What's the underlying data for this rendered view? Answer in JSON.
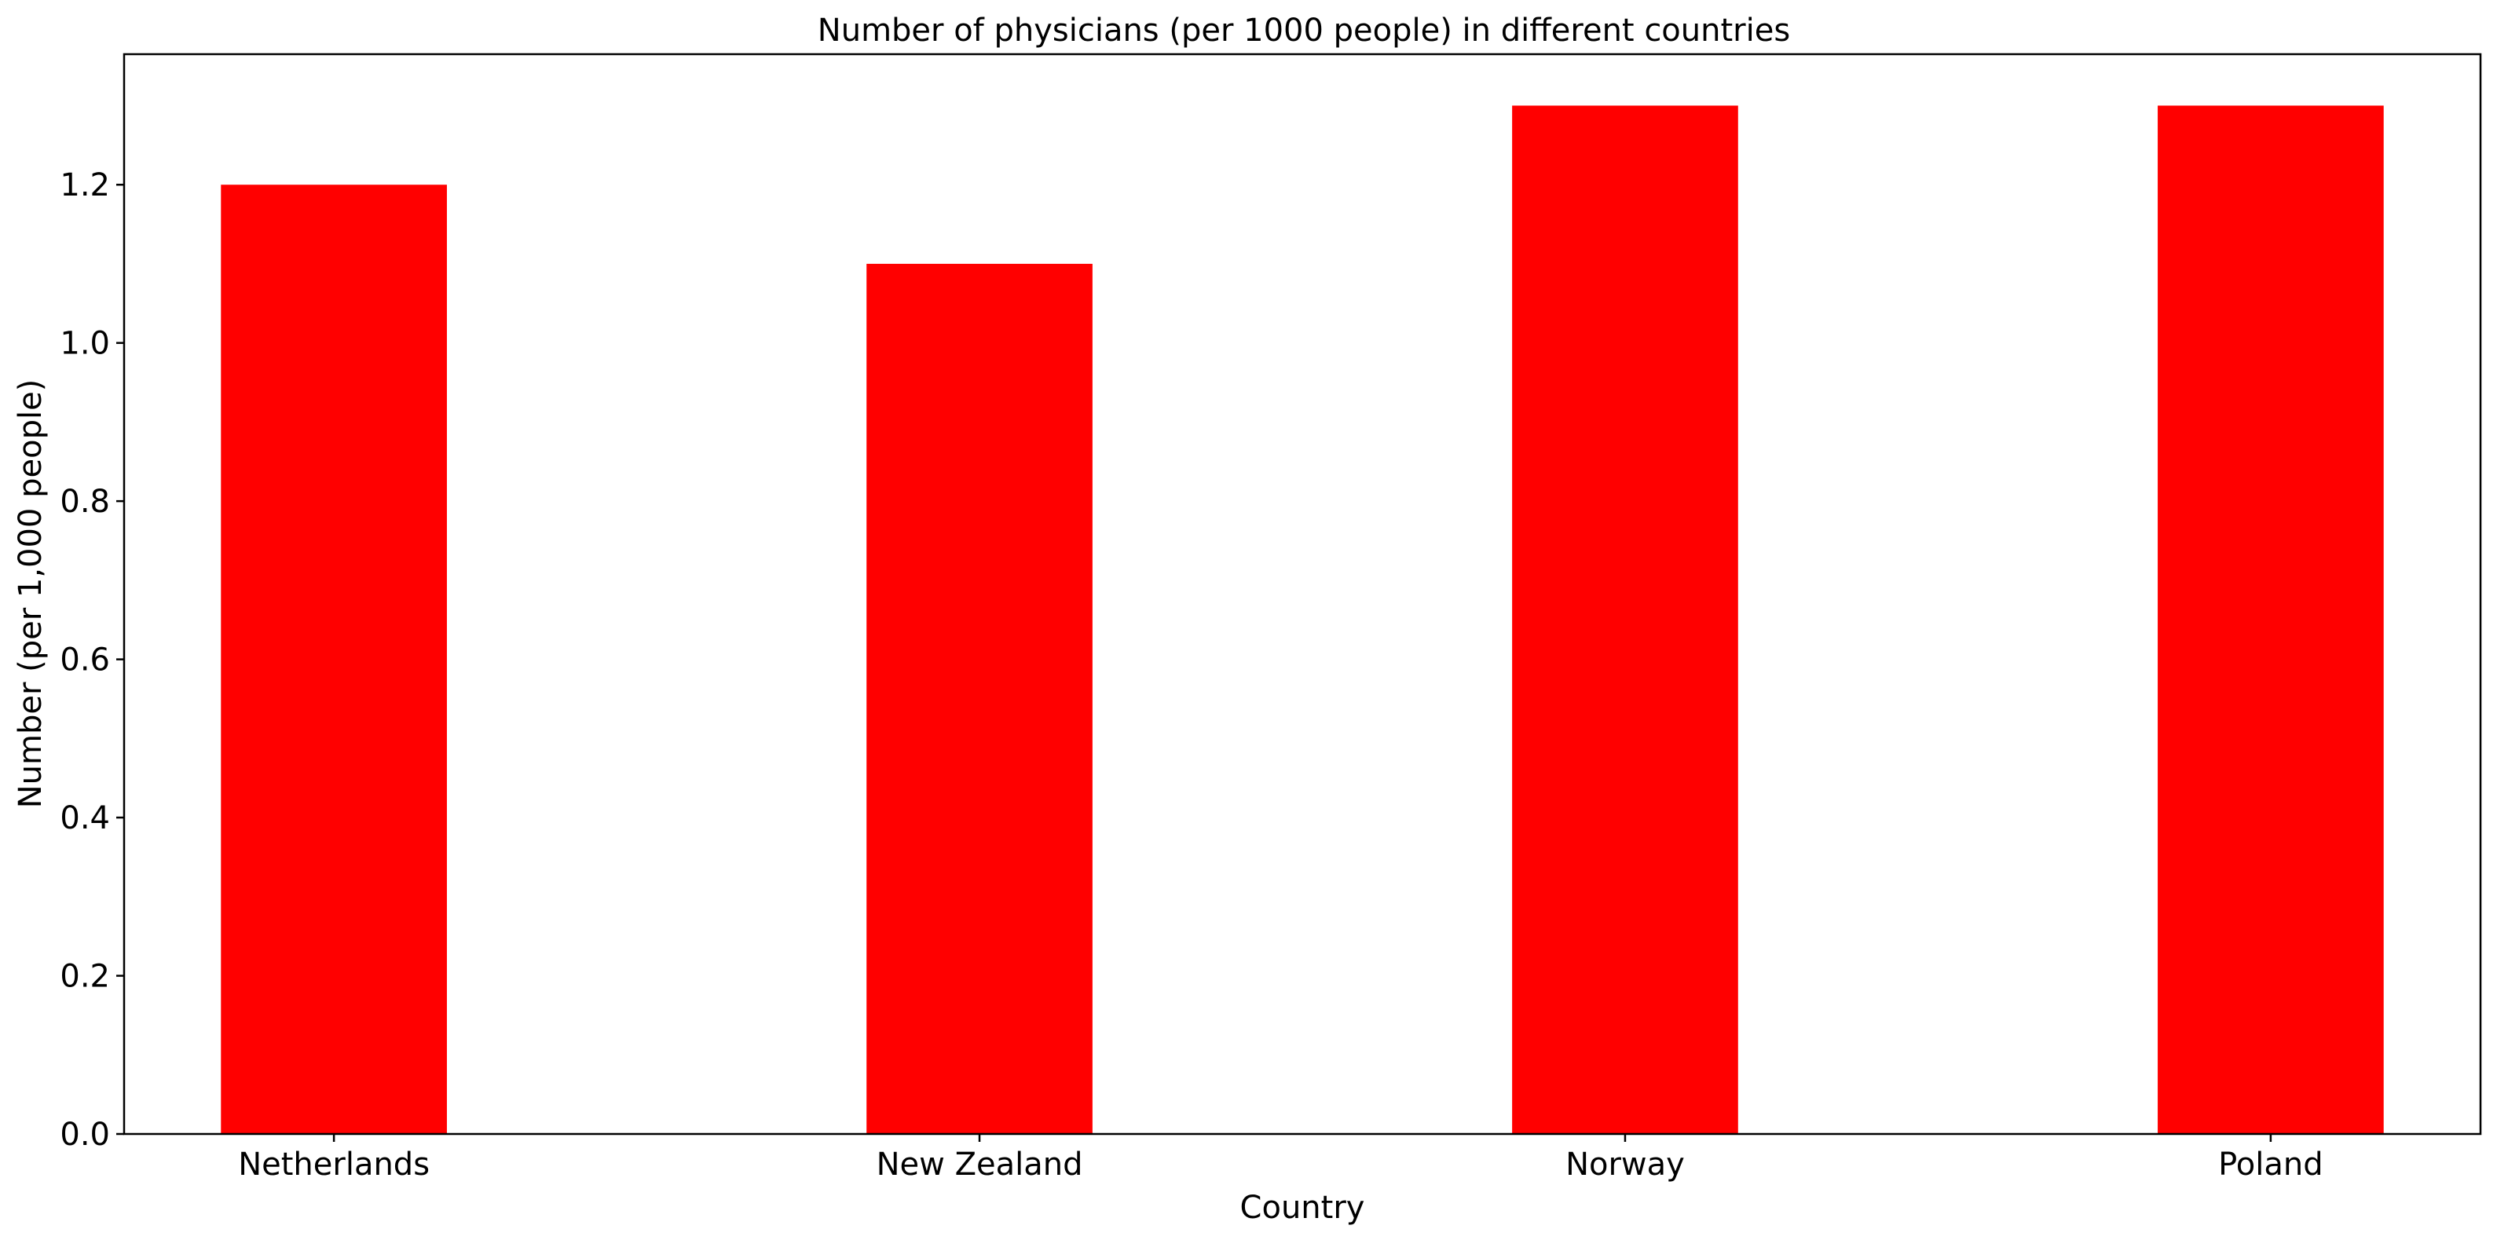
{
  "chart_data": {
    "type": "bar",
    "title": "Number of physicians (per 1000 people) in different countries",
    "xlabel": "Country",
    "ylabel": "Number (per 1,000 people)",
    "categories": [
      "Netherlands",
      "New Zealand",
      "Norway",
      "Poland"
    ],
    "values": [
      1.2,
      1.1,
      1.3,
      1.3
    ],
    "ylim": [
      0,
      1.365
    ],
    "yticks": [
      "0.0",
      "0.2",
      "0.4",
      "0.6",
      "0.8",
      "1.0",
      "1.2"
    ],
    "bar_color": "#ff0000",
    "grid": false,
    "legend": "none"
  }
}
